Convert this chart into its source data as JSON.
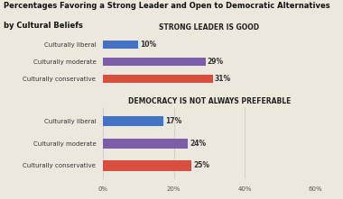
{
  "title_line1": "Percentages Favoring a Strong Leader and Open to Democratic Alternatives",
  "title_line2": "by Cultural Beliefs",
  "section1_title": "STRONG LEADER IS GOOD",
  "section2_title": "DEMOCRACY IS NOT ALWAYS PREFERABLE",
  "categories": [
    "Culturally liberal",
    "Culturally moderate",
    "Culturally conservative"
  ],
  "section1_values": [
    10,
    29,
    31
  ],
  "section2_values": [
    17,
    24,
    25
  ],
  "bar_colors": [
    "#4472c4",
    "#7b5ea7",
    "#d94f3d"
  ],
  "xlim": [
    0,
    60
  ],
  "xticks": [
    0,
    20,
    40,
    60
  ],
  "xticklabels": [
    "0%",
    "20%",
    "40%",
    "60%"
  ],
  "label_fontsize": 5.0,
  "section_title_fontsize": 5.5,
  "value_label_fontsize": 5.5,
  "title_fontsize": 6.0,
  "background_color": "#ede8de",
  "bar_height": 0.45,
  "grid_color": "#cccccc"
}
